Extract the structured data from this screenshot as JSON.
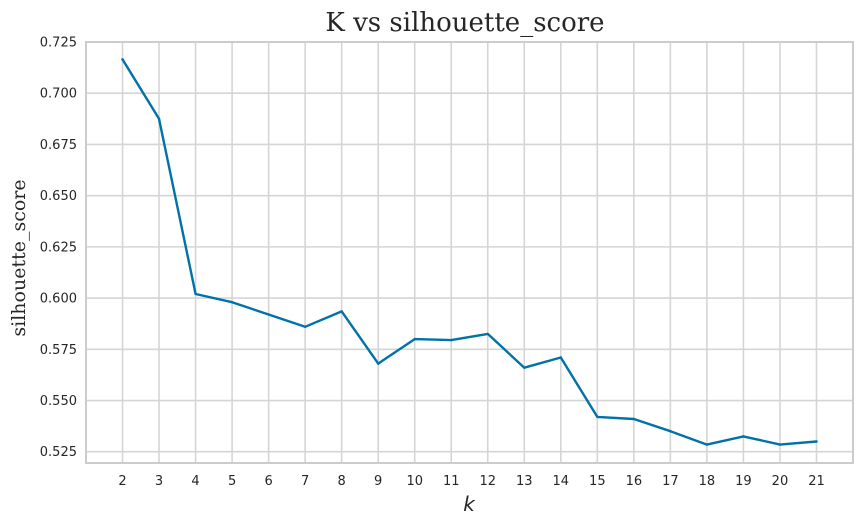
{
  "chart_data": {
    "type": "line",
    "title": "K vs silhouette_score",
    "xlabel": "k",
    "ylabel": "silhouette_score",
    "x": [
      2,
      3,
      4,
      5,
      6,
      7,
      8,
      9,
      10,
      11,
      12,
      13,
      14,
      15,
      16,
      17,
      18,
      19,
      20,
      21
    ],
    "series": [
      {
        "values": [
          0.7165,
          0.6875,
          0.602,
          0.598,
          0.592,
          0.586,
          0.5935,
          0.568,
          0.58,
          0.5795,
          0.5825,
          0.566,
          0.571,
          0.542,
          0.541,
          0.535,
          0.5285,
          0.5325,
          0.5285,
          0.53
        ],
        "color": "#0072a8"
      }
    ],
    "xlim": [
      1,
      22
    ],
    "ylim": [
      0.5195,
      0.725
    ],
    "yticks": [
      0.525,
      0.55,
      0.575,
      0.6,
      0.625,
      0.65,
      0.675,
      0.7,
      0.725
    ],
    "ytick_labels": [
      "0.525",
      "0.550",
      "0.575",
      "0.600",
      "0.625",
      "0.650",
      "0.675",
      "0.700",
      "0.725"
    ],
    "xtick_labels": [
      "2",
      "3",
      "4",
      "5",
      "6",
      "7",
      "8",
      "9",
      "10",
      "11",
      "12",
      "13",
      "14",
      "15",
      "16",
      "17",
      "18",
      "19",
      "20",
      "21"
    ],
    "grid": true,
    "legend": false
  }
}
